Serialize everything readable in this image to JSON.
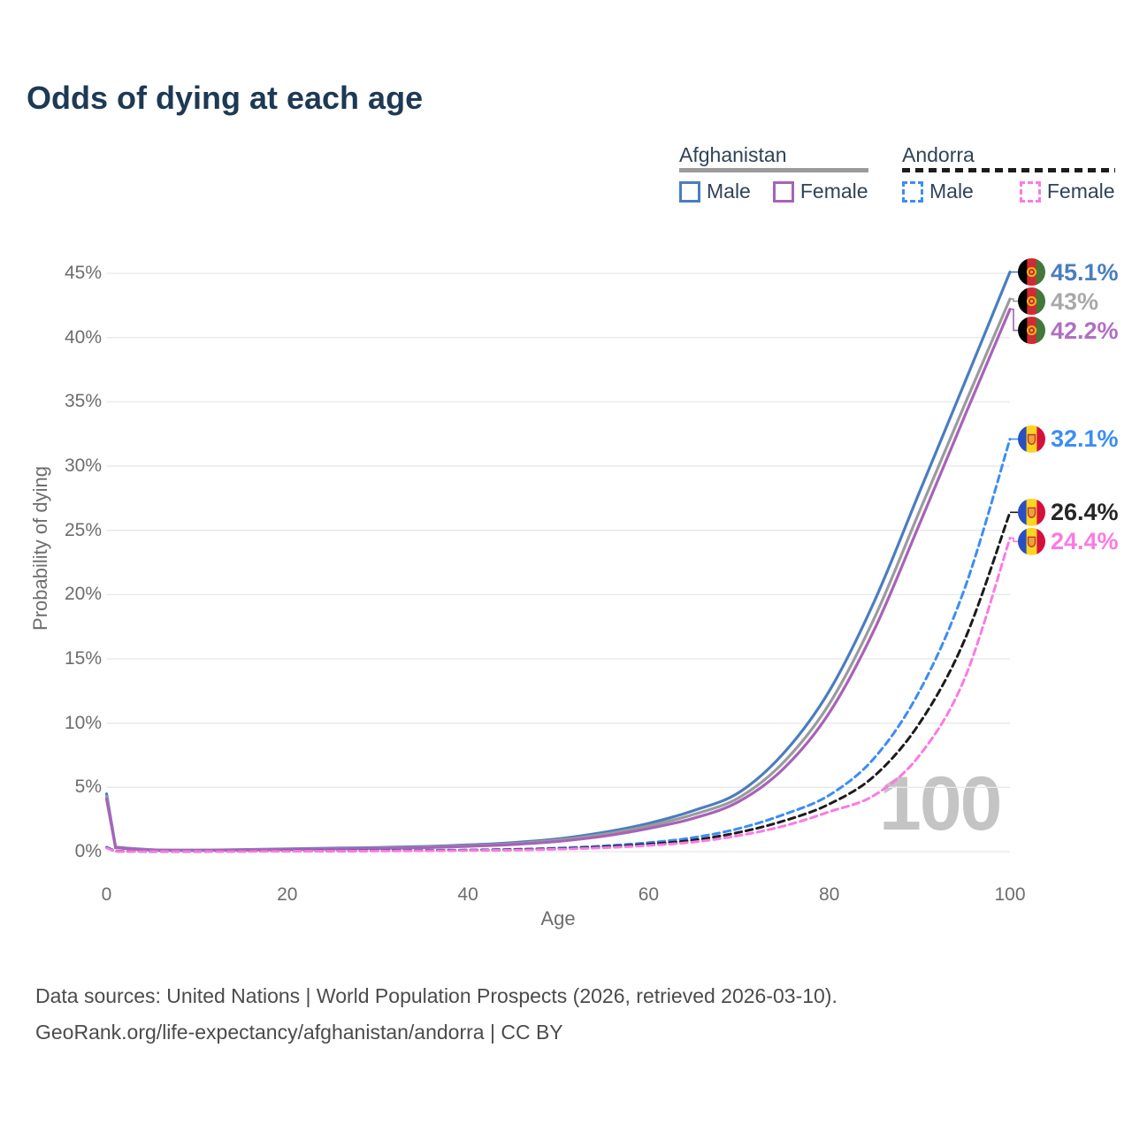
{
  "title": "Odds of dying at each age",
  "watermark_age": "100",
  "legend": {
    "groups": [
      {
        "country": "Afghanistan",
        "line_style": "solid",
        "line_color": "#9b9b9b",
        "items": [
          {
            "label": "Male",
            "color": "#4a7dbf",
            "dashed": false
          },
          {
            "label": "Female",
            "color": "#a763b8",
            "dashed": false
          }
        ]
      },
      {
        "country": "Andorra",
        "line_style": "dashed",
        "line_color": "#1c1c1c",
        "items": [
          {
            "label": "Male",
            "color": "#3c8df5",
            "dashed": true
          },
          {
            "label": "Female",
            "color": "#fb7ae3",
            "dashed": true
          }
        ]
      }
    ]
  },
  "chart_data": {
    "type": "line",
    "title": "Odds of dying at each age",
    "xlabel": "Age",
    "ylabel": "Probability of dying",
    "xlim": [
      0,
      100
    ],
    "ylim": [
      0,
      45
    ],
    "grid": "horizontal-only",
    "legend_position": "top-right",
    "x_ticks": [
      {
        "value": 0,
        "label": "0"
      },
      {
        "value": 20,
        "label": "20"
      },
      {
        "value": 40,
        "label": "40"
      },
      {
        "value": 60,
        "label": "60"
      },
      {
        "value": 80,
        "label": "80"
      },
      {
        "value": 100,
        "label": "100"
      }
    ],
    "y_ticks": [
      {
        "value": 0,
        "label": "0%"
      },
      {
        "value": 5,
        "label": "5%"
      },
      {
        "value": 10,
        "label": "10%"
      },
      {
        "value": 15,
        "label": "15%"
      },
      {
        "value": 20,
        "label": "20%"
      },
      {
        "value": 25,
        "label": "25%"
      },
      {
        "value": 30,
        "label": "30%"
      },
      {
        "value": 35,
        "label": "35%"
      },
      {
        "value": 40,
        "label": "40%"
      },
      {
        "value": 45,
        "label": "45%"
      }
    ],
    "ages": [
      0,
      1,
      5,
      10,
      15,
      20,
      25,
      30,
      35,
      40,
      45,
      50,
      55,
      60,
      65,
      70,
      75,
      80,
      85,
      90,
      95,
      100
    ],
    "series": [
      {
        "name": "Afghanistan Male",
        "slug": "afghanistan-male",
        "country": "afghanistan",
        "color": "#4a7dbf",
        "dashed": false,
        "end_label": "45.1%",
        "end_label_color": "#4a7dbf",
        "values": [
          4.5,
          0.35,
          0.15,
          0.12,
          0.16,
          0.22,
          0.27,
          0.32,
          0.4,
          0.52,
          0.7,
          1.0,
          1.5,
          2.2,
          3.2,
          4.6,
          7.7,
          12.5,
          19.5,
          28.0,
          36.5,
          45.1
        ]
      },
      {
        "name": "Afghanistan",
        "slug": "afghanistan-all",
        "country": "afghanistan",
        "color": "#9b9b9b",
        "dashed": false,
        "end_label": "43%",
        "end_label_color": "#a9a9a9",
        "values": [
          4.3,
          0.32,
          0.14,
          0.11,
          0.14,
          0.19,
          0.23,
          0.28,
          0.35,
          0.46,
          0.62,
          0.9,
          1.35,
          2.0,
          2.9,
          4.2,
          7.0,
          11.5,
          18.2,
          26.5,
          34.8,
          43.0
        ]
      },
      {
        "name": "Afghanistan Female",
        "slug": "afghanistan-female",
        "country": "afghanistan",
        "color": "#a763b8",
        "dashed": false,
        "end_label": "42.2%",
        "end_label_color": "#b06fc2",
        "values": [
          4.1,
          0.3,
          0.13,
          0.1,
          0.13,
          0.17,
          0.21,
          0.25,
          0.31,
          0.41,
          0.56,
          0.8,
          1.2,
          1.8,
          2.6,
          3.9,
          6.5,
          10.8,
          17.3,
          25.5,
          33.9,
          42.2
        ]
      },
      {
        "name": "Andorra Male",
        "slug": "andorra-male",
        "country": "andorra",
        "color": "#3c8df5",
        "dashed": true,
        "end_label": "32.1%",
        "end_label_color": "#3c8df5",
        "values": [
          0.35,
          0.03,
          0.02,
          0.02,
          0.03,
          0.05,
          0.06,
          0.08,
          0.1,
          0.13,
          0.18,
          0.28,
          0.45,
          0.7,
          1.1,
          1.8,
          2.9,
          4.4,
          7.3,
          12.5,
          20.5,
          32.1
        ]
      },
      {
        "name": "Andorra",
        "slug": "andorra-all",
        "country": "andorra",
        "color": "#1c1c1c",
        "dashed": true,
        "end_label": "26.4%",
        "end_label_color": "#262626",
        "values": [
          0.3,
          0.03,
          0.02,
          0.02,
          0.03,
          0.04,
          0.05,
          0.07,
          0.09,
          0.11,
          0.15,
          0.23,
          0.37,
          0.58,
          0.9,
          1.5,
          2.4,
          3.7,
          5.9,
          10.0,
          16.5,
          26.4
        ]
      },
      {
        "name": "Andorra Female",
        "slug": "andorra-female",
        "country": "andorra",
        "color": "#fb7ae3",
        "dashed": true,
        "end_label": "24.4%",
        "end_label_color": "#fb7ae3",
        "values": [
          0.28,
          0.02,
          0.015,
          0.015,
          0.02,
          0.03,
          0.04,
          0.05,
          0.07,
          0.09,
          0.12,
          0.19,
          0.3,
          0.48,
          0.75,
          1.25,
          2.0,
          3.1,
          4.4,
          7.5,
          13.5,
          24.4
        ]
      }
    ],
    "flag_colors": {
      "afghanistan": {
        "stripes": [
          "#000000",
          "#cf2b31",
          "#44773b"
        ],
        "emblem": "#f2b517"
      },
      "andorra": {
        "stripes": [
          "#2a4fc0",
          "#ffd41f",
          "#d5103c"
        ],
        "emblem_fill": "#e8a33d",
        "emblem_stroke": "#c0392b"
      }
    },
    "grid_color": "#e8e8e8"
  },
  "axes": {
    "x_label": "Age",
    "y_label": "Probability of dying"
  },
  "footer": {
    "line1": "Data sources: United Nations | World Population Prospects (2026, retrieved 2026-03-10).",
    "line2": "GeoRank.org/life-expectancy/afghanistan/andorra | CC BY"
  }
}
